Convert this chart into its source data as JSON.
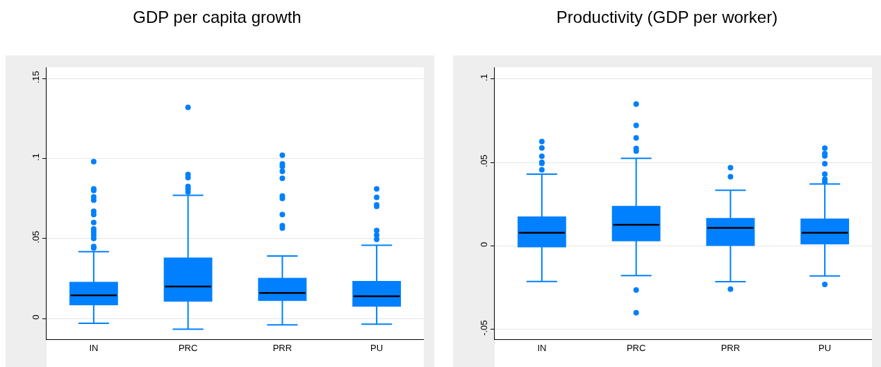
{
  "chart_data": [
    {
      "type": "box",
      "title": "GDP per capita growth",
      "categories": [
        "IN",
        "PRC",
        "PRR",
        "PU"
      ],
      "ylim": [
        -0.013,
        0.157
      ],
      "yticks": [
        {
          "value": 0,
          "label": "0"
        },
        {
          "value": 0.05,
          "label": ".05"
        },
        {
          "value": 0.1,
          "label": ".1"
        },
        {
          "value": 0.15,
          "label": ".15"
        }
      ],
      "grid": "y",
      "series": [
        {
          "color": "#0080ff",
          "boxes": [
            {
              "low": -0.003,
              "q1": 0.0087,
              "median": 0.0144,
              "q3": 0.0225,
              "high": 0.0418,
              "outliers": [
                0.098,
                0.081,
                0.08,
                0.076,
                0.074,
                0.067,
                0.065,
                0.06,
                0.056,
                0.054,
                0.052,
                0.05,
                0.045,
                0.044
              ]
            },
            {
              "low": -0.0067,
              "q1": 0.011,
              "median": 0.02,
              "q3": 0.0376,
              "high": 0.077,
              "outliers": [
                0.132,
                0.09,
                0.088,
                0.0825,
                0.081,
                0.079
              ]
            },
            {
              "low": -0.004,
              "q1": 0.0114,
              "median": 0.016,
              "q3": 0.025,
              "high": 0.039,
              "outliers": [
                0.102,
                0.0966,
                0.095,
                0.092,
                0.0876,
                0.0765,
                0.075,
                0.065,
                0.058,
                0.0565
              ]
            },
            {
              "low": -0.0036,
              "q1": 0.0078,
              "median": 0.0139,
              "q3": 0.023,
              "high": 0.0458,
              "outliers": [
                0.081,
                0.0757,
                0.071,
                0.07,
                0.055,
                0.052,
                0.0495
              ]
            }
          ]
        }
      ]
    },
    {
      "type": "box",
      "title": "Productivity (GDP per worker)",
      "categories": [
        "IN",
        "PRC",
        "PRR",
        "PU"
      ],
      "ylim": [
        -0.056,
        0.107
      ],
      "yticks": [
        {
          "value": -0.05,
          "label": "-.05"
        },
        {
          "value": 0,
          "label": "0"
        },
        {
          "value": 0.05,
          "label": ".05"
        },
        {
          "value": 0.1,
          "label": ".1"
        }
      ],
      "grid": "y",
      "series": [
        {
          "color": "#0080ff",
          "boxes": [
            {
              "low": -0.0214,
              "q1": -0.0005,
              "median": 0.0078,
              "q3": 0.0172,
              "high": 0.043,
              "outliers": [
                0.0625,
                0.0587,
                0.0537,
                0.05,
                0.0494,
                0.0456
              ]
            },
            {
              "low": -0.0178,
              "q1": 0.0032,
              "median": 0.0126,
              "q3": 0.0235,
              "high": 0.0524,
              "outliers": [
                0.085,
                0.0722,
                0.0647,
                0.0583,
                0.0568,
                -0.0265,
                -0.0401
              ]
            },
            {
              "low": -0.0215,
              "q1": 0.0003,
              "median": 0.0107,
              "q3": 0.0163,
              "high": 0.0333,
              "outliers": [
                0.0468,
                0.0414,
                -0.026
              ]
            },
            {
              "low": -0.0181,
              "q1": 0.0013,
              "median": 0.0078,
              "q3": 0.0159,
              "high": 0.037,
              "outliers": [
                0.0586,
                0.0553,
                0.0539,
                0.0492,
                0.043,
                0.04,
                0.0383,
                -0.0231
              ]
            }
          ]
        }
      ]
    }
  ]
}
